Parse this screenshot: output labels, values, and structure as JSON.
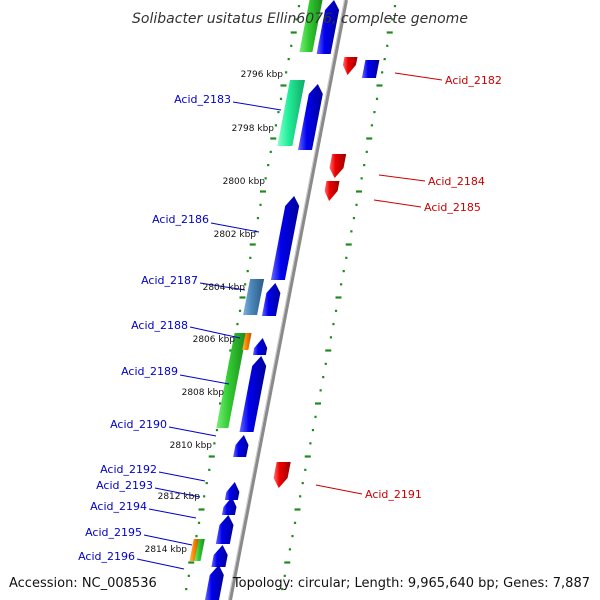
{
  "title": "Solibacter usitatus Ellin6076, complete genome",
  "footer": {
    "accession": "Accession: NC_008536",
    "topology": "Topology: circular; Length: 9,965,640 bp; Genes: 7,887"
  },
  "colors": {
    "backbone": "#8a8a8a",
    "tick": "#1f8a1f",
    "forward_gene": "#0000ee",
    "reverse_gene": "#ee0000",
    "forward_label": "#0000cc",
    "reverse_label": "#cc0000",
    "rna_green": "#33cc33",
    "rna_teal": "#22ee99",
    "rna_steel": "#4a86b8",
    "rna_orange": "#ff8800"
  },
  "kbp_labels": [
    "2796 kbp",
    "2798 kbp",
    "2800 kbp",
    "2802 kbp",
    "2804 kbp",
    "2806 kbp",
    "2808 kbp",
    "2810 kbp",
    "2812 kbp",
    "2814 kbp"
  ],
  "forward_labels": [
    "Acid_2183",
    "Acid_2186",
    "Acid_2187",
    "Acid_2188",
    "Acid_2189",
    "Acid_2190",
    "Acid_2192",
    "Acid_2193",
    "Acid_2194",
    "Acid_2195",
    "Acid_2196"
  ],
  "reverse_labels": [
    "Acid_2182",
    "Acid_2184",
    "Acid_2185",
    "Acid_2191"
  ]
}
